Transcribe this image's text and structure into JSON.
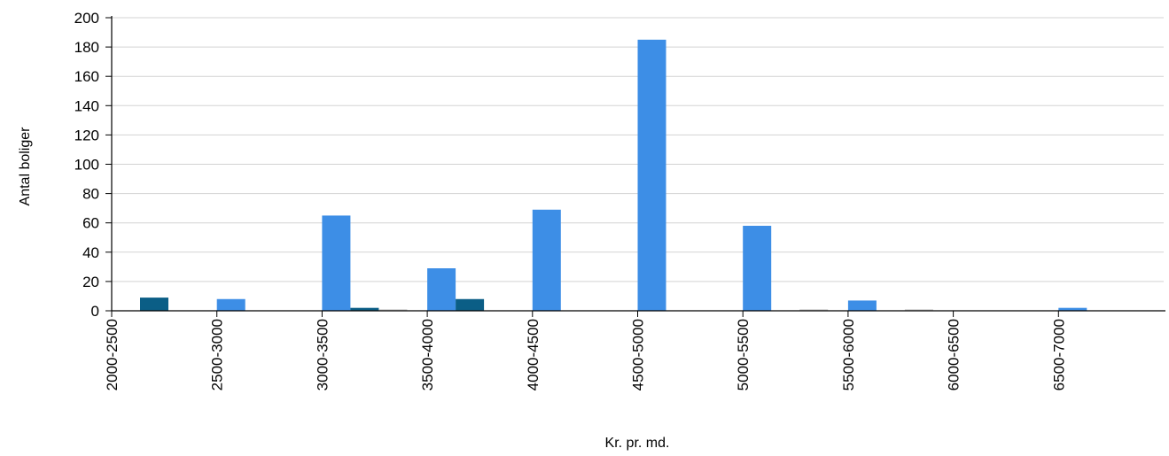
{
  "chart_data": {
    "type": "bar",
    "title": "",
    "xlabel": "Kr. pr. md.",
    "ylabel": "Antal boliger",
    "categories": [
      "2000-2500",
      "2500-3000",
      "3000-3500",
      "3500-4000",
      "4000-4500",
      "4500-5000",
      "5000-5500",
      "5500-6000",
      "6000-6500",
      "6500-7000"
    ],
    "ylim": [
      0,
      200
    ],
    "yticks": [
      0,
      20,
      40,
      60,
      80,
      100,
      120,
      140,
      160,
      180,
      200
    ],
    "grid": true,
    "legend": "none",
    "series": [
      {
        "color": "#3d8ee6",
        "values": [
          0,
          8,
          65,
          29,
          69,
          185,
          58,
          7,
          0,
          2
        ]
      },
      {
        "color": "#0b5e86",
        "values": [
          9,
          0,
          2,
          8,
          0,
          0,
          0,
          0,
          0,
          0
        ]
      },
      {
        "color": "#c8c8c8",
        "values": [
          0,
          0,
          1,
          0,
          0,
          0,
          1,
          1,
          0,
          0
        ]
      }
    ]
  }
}
